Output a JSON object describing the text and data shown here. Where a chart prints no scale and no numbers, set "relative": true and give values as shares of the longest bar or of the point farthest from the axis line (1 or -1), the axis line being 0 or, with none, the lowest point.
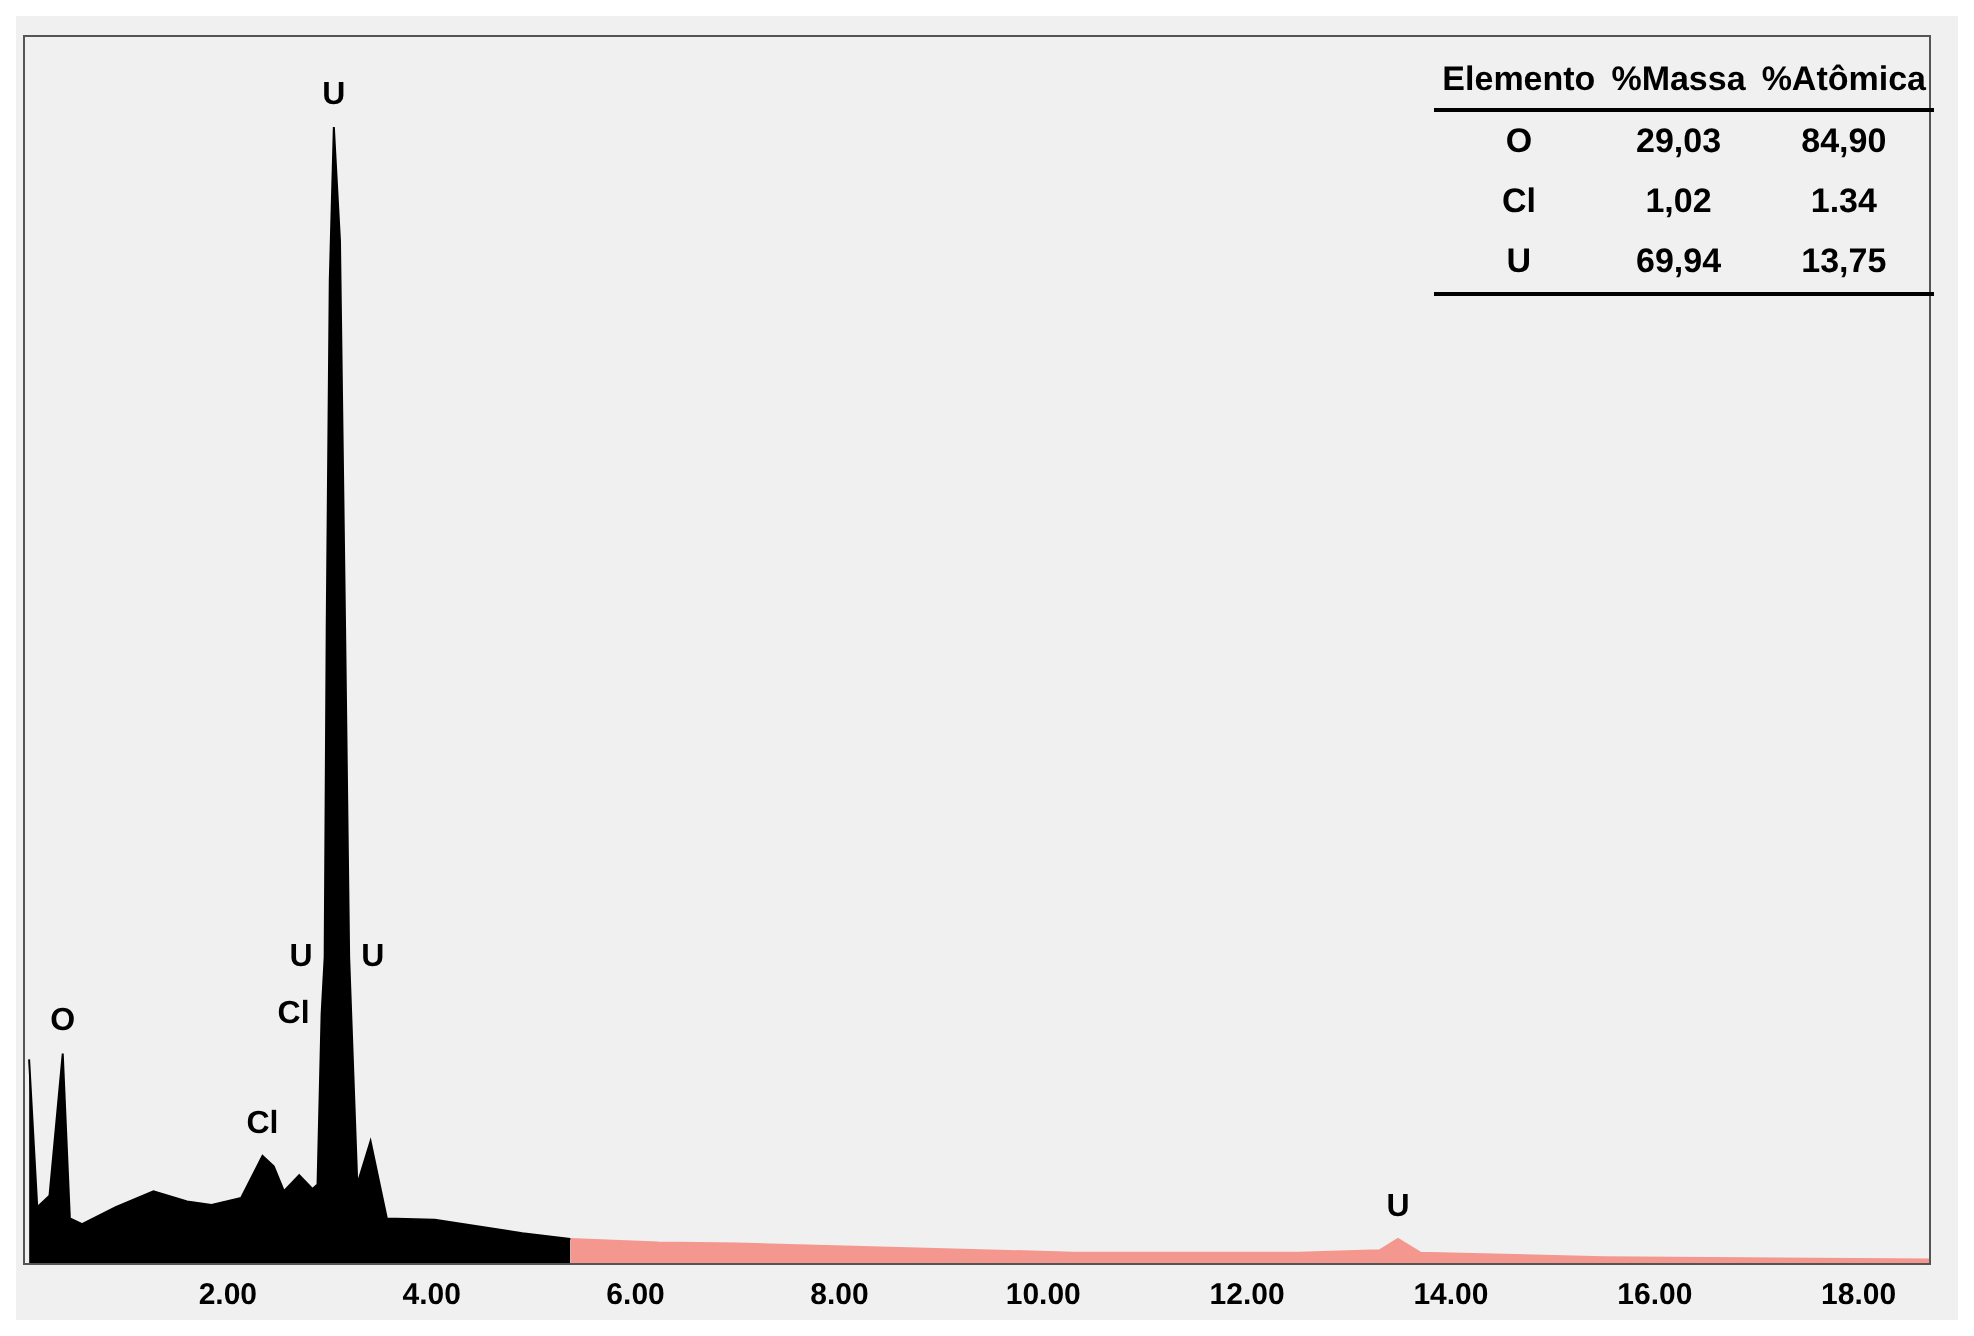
{
  "chart_data": {
    "type": "area",
    "relative": true,
    "tick_labels": "x",
    "grid": false,
    "legend": false,
    "series": [
      {
        "color": "#000000",
        "x": [
          0.05,
          0.13,
          0.25,
          0.38,
          0.45,
          0.57,
          0.9,
          1.27,
          1.6,
          1.84,
          2.13,
          2.34,
          2.45,
          2.55,
          2.7,
          2.83,
          2.88,
          2.92,
          2.95,
          2.97,
          3.0,
          3.04,
          3.1,
          3.15,
          3.19,
          3.27,
          3.4,
          3.56,
          4.03,
          4.89,
          5.36
        ],
        "values": [
          0.18,
          0.05,
          0.06,
          0.185,
          0.04,
          0.035,
          0.05,
          0.064,
          0.055,
          0.052,
          0.058,
          0.095,
          0.086,
          0.064,
          0.078,
          0.066,
          0.07,
          0.22,
          0.27,
          0.56,
          0.865,
          1.0,
          0.9,
          0.56,
          0.27,
          0.07,
          0.108,
          0.04,
          0.039,
          0.027,
          0.022
        ]
      },
      {
        "color": "#f4978e",
        "x": [
          5.36,
          6.22,
          7.0,
          8.23,
          10.3,
          12.5,
          13.3,
          13.48,
          13.7,
          15.5,
          18.7
        ],
        "values": [
          0.022,
          0.019,
          0.018,
          0.015,
          0.01,
          0.01,
          0.012,
          0.022,
          0.01,
          0.006,
          0.004
        ]
      }
    ],
    "xlim": [
      0,
      18.7
    ],
    "xticks": [
      {
        "value": 2,
        "label": "2.00"
      },
      {
        "value": 4,
        "label": "4.00"
      },
      {
        "value": 6,
        "label": "6.00"
      },
      {
        "value": 8,
        "label": "8.00"
      },
      {
        "value": 10,
        "label": "10.00"
      },
      {
        "value": 12,
        "label": "12.00"
      },
      {
        "value": 14,
        "label": "14.00"
      },
      {
        "value": 16,
        "label": "16.00"
      },
      {
        "value": 18,
        "label": "18.00"
      }
    ],
    "annotations": [
      {
        "text": "U",
        "x": 3.04,
        "y": 1.0
      },
      {
        "text": "O",
        "x": 0.38,
        "y": 0.185
      },
      {
        "text": "U",
        "x": 2.95,
        "y": 0.27
      },
      {
        "text": "U",
        "x": 3.19,
        "y": 0.27
      },
      {
        "text": "Cl",
        "x": 2.92,
        "y": 0.22
      },
      {
        "text": "Cl",
        "x": 2.34,
        "y": 0.095
      },
      {
        "text": "U",
        "x": 13.48,
        "y": 0.022
      },
      "Elemento",
      "%Massa",
      "%Atômica",
      "O",
      "29,03",
      "84,90",
      "Cl",
      "1,02",
      "1.34",
      "U",
      "69,94",
      "13,75"
    ]
  }
}
